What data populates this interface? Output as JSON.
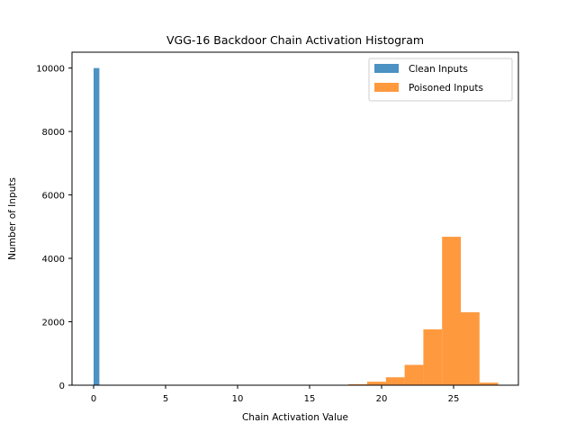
{
  "chart_data": {
    "type": "bar",
    "title": "VGG-16 Backdoor Chain Activation Histogram",
    "xlabel": "Chain Activation Value",
    "ylabel": "Number of Inputs",
    "xlim": [
      -1.5,
      29.5
    ],
    "ylim": [
      0,
      10500
    ],
    "xticks": [
      0,
      5,
      10,
      15,
      20,
      25
    ],
    "yticks": [
      0,
      2000,
      4000,
      6000,
      8000,
      10000
    ],
    "grid": false,
    "legend_position": "top-right",
    "series": [
      {
        "name": "Clean Inputs",
        "color": "#1f77b4",
        "bins": [
          {
            "x0": 0.0,
            "x1": 0.4,
            "count": 10000
          }
        ]
      },
      {
        "name": "Poisoned Inputs",
        "color": "#ff7f0e",
        "bins": [
          {
            "x0": 17.7,
            "x1": 19.0,
            "count": 30
          },
          {
            "x0": 19.0,
            "x1": 20.3,
            "count": 110
          },
          {
            "x0": 20.3,
            "x1": 21.6,
            "count": 250
          },
          {
            "x0": 21.6,
            "x1": 22.9,
            "count": 640
          },
          {
            "x0": 22.9,
            "x1": 24.2,
            "count": 1760
          },
          {
            "x0": 24.2,
            "x1": 25.5,
            "count": 4680
          },
          {
            "x0": 25.5,
            "x1": 26.8,
            "count": 2300
          },
          {
            "x0": 26.8,
            "x1": 28.1,
            "count": 80
          }
        ]
      }
    ]
  }
}
